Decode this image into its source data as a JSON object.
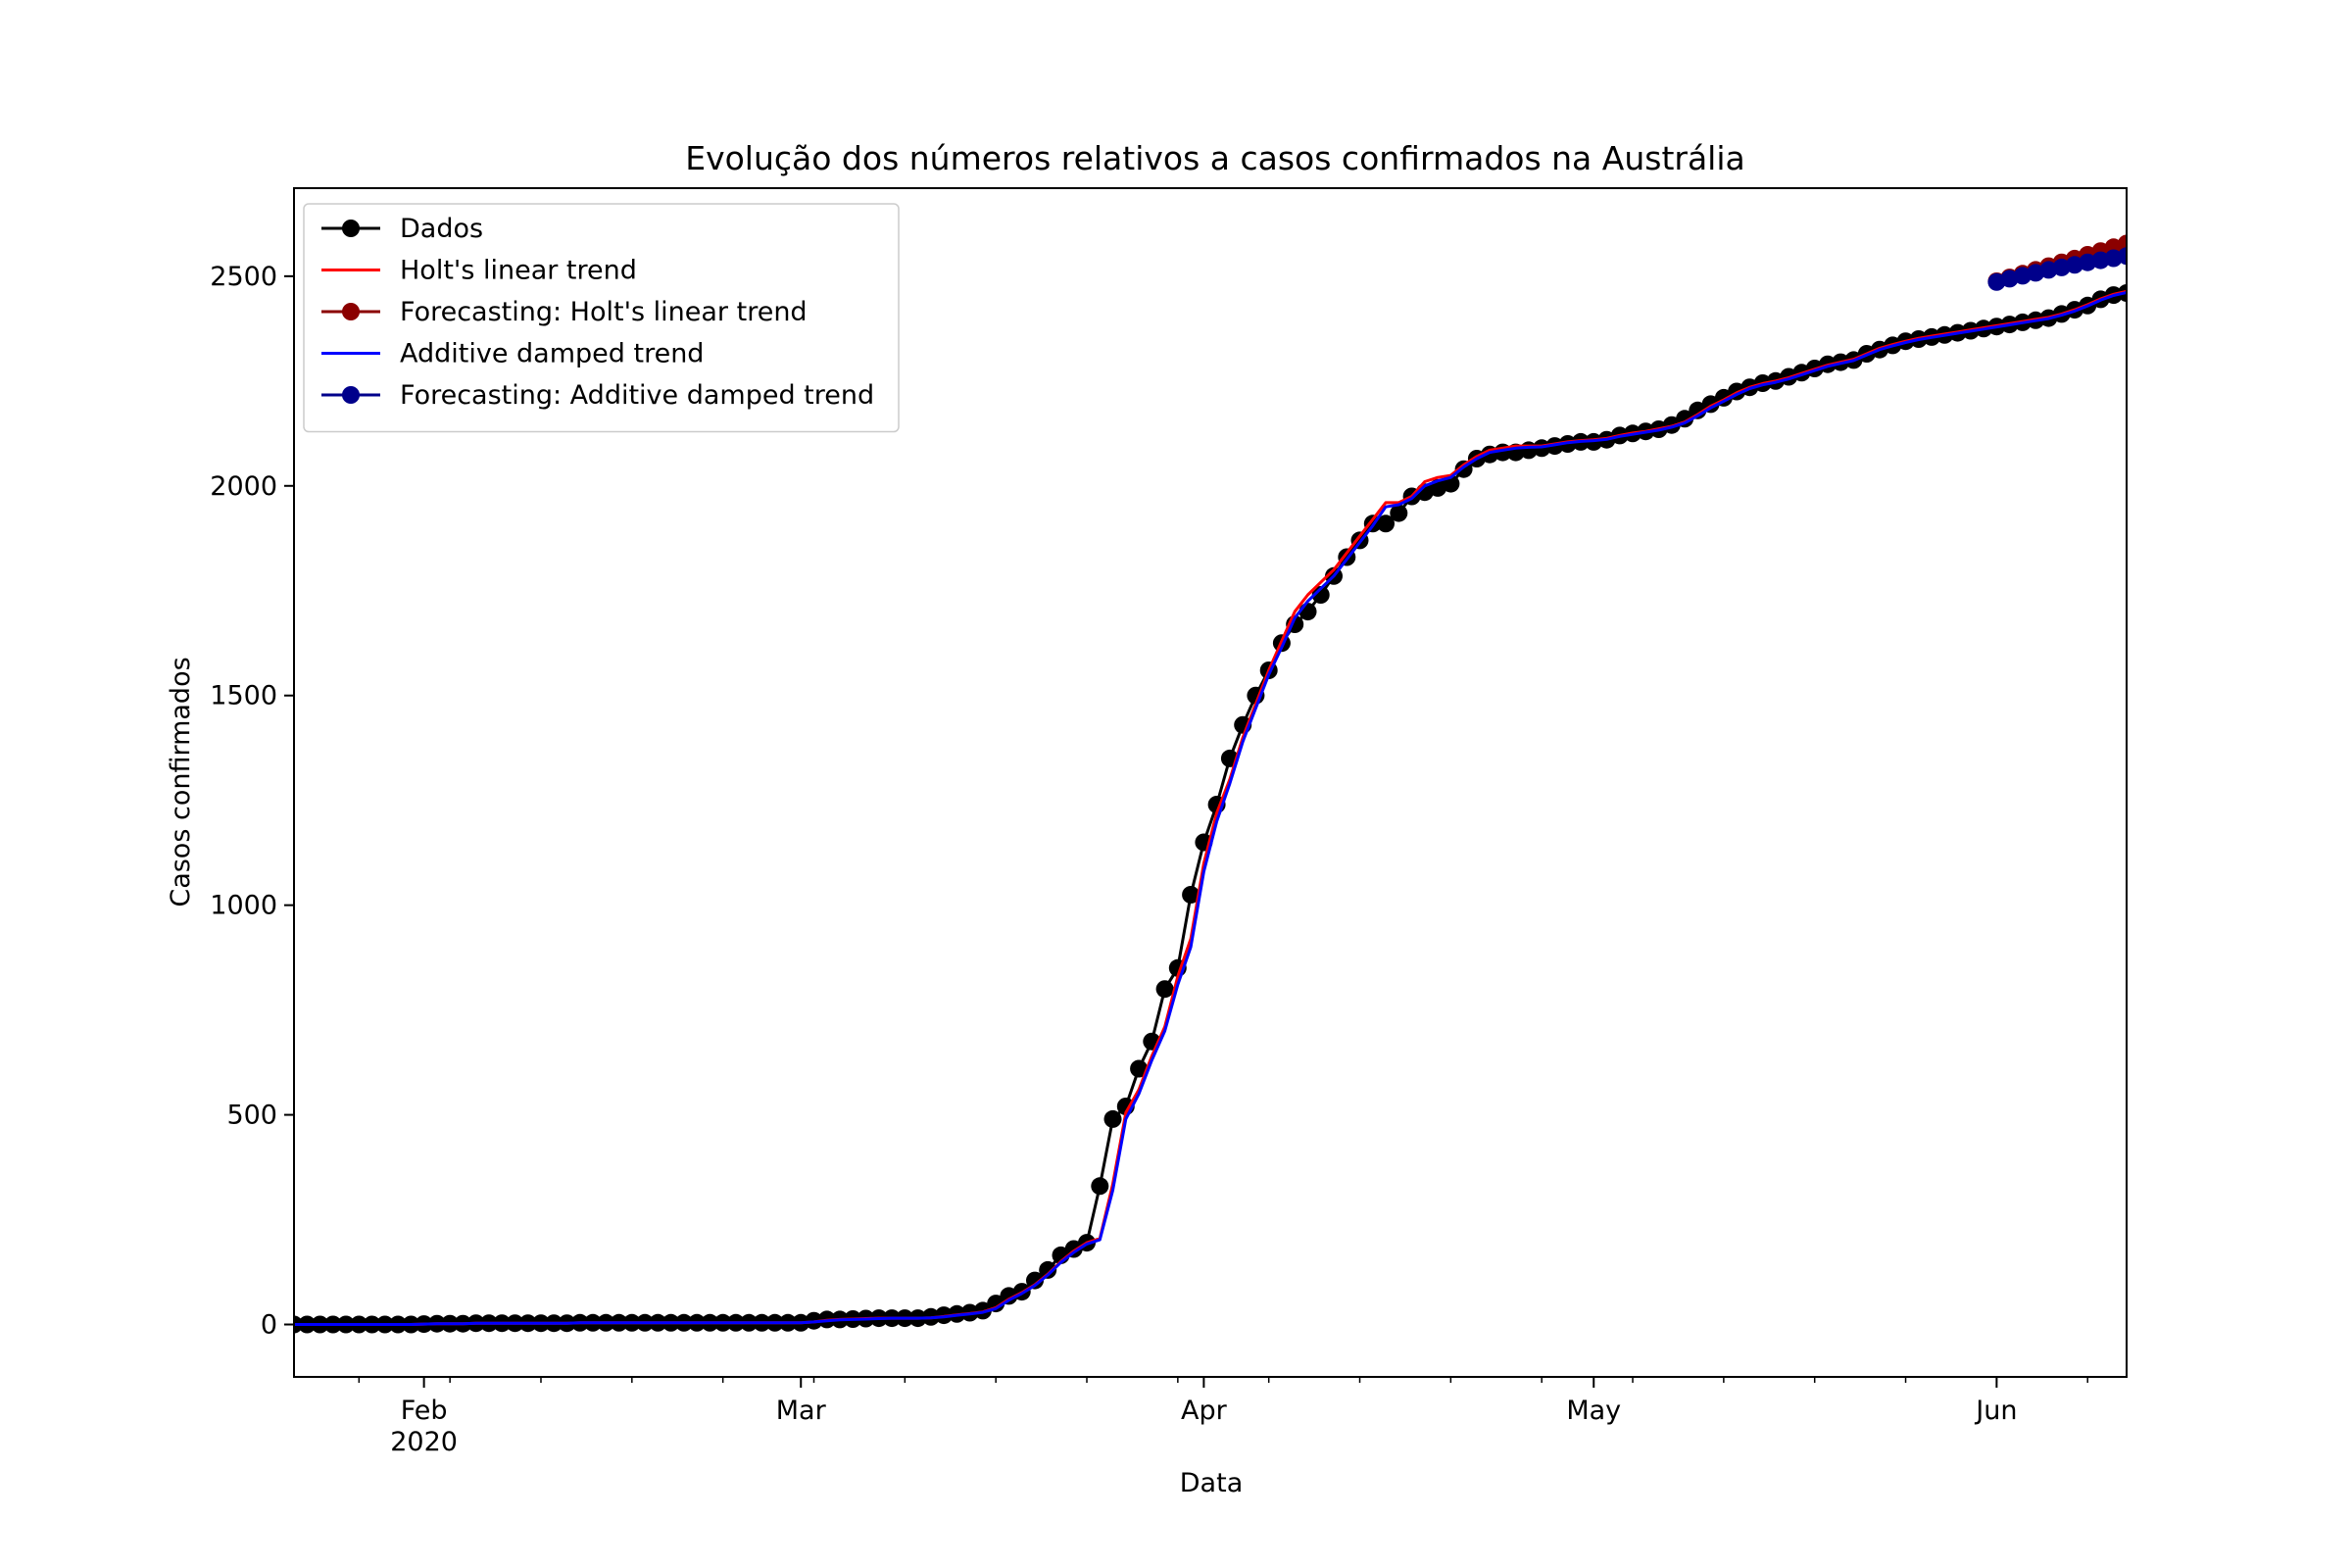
{
  "chart_data": {
    "type": "line",
    "title": "Evolução dos números relativos a casos confirmados na Austrália",
    "xlabel": "Data",
    "ylabel": "Casos confirmados",
    "x_start": "2020-01-22",
    "x_end": "2020-06-11",
    "ylim": [
      -125,
      2710
    ],
    "yticks": [
      0,
      500,
      1000,
      1500,
      2000,
      2500
    ],
    "xticks": [
      {
        "label": "Feb",
        "sublabel": "2020",
        "date": "2020-02-01"
      },
      {
        "label": "Mar",
        "sublabel": "",
        "date": "2020-03-01"
      },
      {
        "label": "Apr",
        "sublabel": "",
        "date": "2020-04-01"
      },
      {
        "label": "May",
        "sublabel": "",
        "date": "2020-05-01"
      },
      {
        "label": "Jun",
        "sublabel": "",
        "date": "2020-06-01"
      }
    ],
    "grid": false,
    "legend_position": "upper left",
    "legend": [
      {
        "label": "Dados",
        "color": "#000000",
        "marker": true
      },
      {
        "label": "Holt's linear trend",
        "color": "#ff0000",
        "marker": false
      },
      {
        "label": "Forecasting: Holt's linear trend",
        "color": "#8b0000",
        "marker": true
      },
      {
        "label": "Additive damped trend",
        "color": "#0000ff",
        "marker": false
      },
      {
        "label": "Forecasting: Additive damped trend",
        "color": "#00008b",
        "marker": true
      }
    ],
    "series": [
      {
        "name": "Dados",
        "color": "#000000",
        "marker": true,
        "dates": [
          "2020-01-22",
          "2020-05-31"
        ],
        "values": [
          0,
          0,
          0,
          0,
          0,
          0,
          0,
          0,
          0,
          0,
          1,
          2,
          2,
          2,
          3,
          3,
          3,
          3,
          3,
          3,
          3,
          3,
          4,
          4,
          4,
          4,
          4,
          4,
          4,
          4,
          4,
          4,
          4,
          4,
          4,
          4,
          4,
          4,
          4,
          4,
          9,
          12,
          12,
          13,
          14,
          15,
          15,
          15,
          15,
          18,
          22,
          25,
          28,
          33,
          50,
          68,
          78,
          105,
          130,
          165,
          180,
          195,
          330,
          490,
          520,
          610,
          675,
          800,
          850,
          1025,
          1150,
          1240,
          1350,
          1430,
          1500,
          1560,
          1625,
          1670,
          1700,
          1740,
          1785,
          1830,
          1870,
          1910,
          1910,
          1935,
          1975,
          1985,
          1995,
          2005,
          2040,
          2065,
          2075,
          2080,
          2080,
          2085,
          2090,
          2095,
          2100,
          2105,
          2105,
          2110,
          2120,
          2125,
          2130,
          2135,
          2145,
          2160,
          2180,
          2195,
          2210,
          2225,
          2235,
          2245,
          2250,
          2260,
          2270,
          2280,
          2290,
          2295,
          2300,
          2315,
          2325,
          2335,
          2345,
          2350,
          2355,
          2360,
          2365,
          2370,
          2375,
          2380,
          2385,
          2390,
          2395,
          2400,
          2410,
          2420,
          2430,
          2445,
          2455,
          2460,
          2470,
          2480
        ]
      },
      {
        "name": "Holt's linear trend",
        "color": "#ff0000",
        "marker": false,
        "dates": [
          "2020-01-22",
          "2020-05-31"
        ],
        "values": [
          0,
          0,
          0,
          0,
          0,
          0,
          0,
          0,
          0,
          0,
          1,
          2,
          2,
          2,
          3,
          3,
          3,
          3,
          3,
          3,
          3,
          3,
          4,
          4,
          4,
          4,
          4,
          4,
          4,
          4,
          4,
          4,
          4,
          4,
          4,
          4,
          4,
          4,
          4,
          4,
          6,
          10,
          12,
          13,
          14,
          15,
          15,
          15,
          15,
          16,
          19,
          23,
          26,
          30,
          40,
          60,
          76,
          95,
          120,
          150,
          175,
          195,
          205,
          335,
          505,
          560,
          640,
          710,
          830,
          920,
          1100,
          1220,
          1300,
          1400,
          1480,
          1560,
          1630,
          1700,
          1740,
          1770,
          1800,
          1840,
          1880,
          1920,
          1960,
          1960,
          1975,
          2010,
          2020,
          2025,
          2050,
          2070,
          2085,
          2090,
          2095,
          2095,
          2095,
          2100,
          2105,
          2108,
          2110,
          2113,
          2120,
          2126,
          2130,
          2136,
          2142,
          2152,
          2170,
          2190,
          2205,
          2222,
          2235,
          2244,
          2250,
          2258,
          2268,
          2278,
          2288,
          2295,
          2302,
          2315,
          2328,
          2337,
          2345,
          2352,
          2357,
          2362,
          2367,
          2372,
          2377,
          2382,
          2387,
          2392,
          2397,
          2402,
          2410,
          2420,
          2432,
          2446,
          2457,
          2464,
          2473,
          2482
        ]
      },
      {
        "name": "Additive damped trend",
        "color": "#0000ff",
        "marker": false,
        "dates": [
          "2020-01-22",
          "2020-05-31"
        ],
        "values": [
          0,
          0,
          0,
          0,
          0,
          0,
          0,
          0,
          0,
          0,
          1,
          2,
          2,
          2,
          3,
          3,
          3,
          3,
          3,
          3,
          3,
          3,
          4,
          4,
          4,
          4,
          4,
          4,
          4,
          4,
          4,
          4,
          4,
          4,
          4,
          4,
          4,
          4,
          4,
          4,
          6,
          9,
          11,
          12,
          13,
          14,
          15,
          15,
          15,
          16,
          18,
          22,
          25,
          29,
          38,
          58,
          74,
          93,
          118,
          148,
          172,
          192,
          202,
          320,
          490,
          550,
          630,
          700,
          810,
          900,
          1080,
          1200,
          1290,
          1390,
          1470,
          1550,
          1615,
          1685,
          1725,
          1755,
          1785,
          1825,
          1865,
          1905,
          1950,
          1955,
          1970,
          2000,
          2012,
          2020,
          2045,
          2065,
          2080,
          2085,
          2090,
          2092,
          2093,
          2098,
          2103,
          2106,
          2108,
          2111,
          2118,
          2123,
          2128,
          2133,
          2140,
          2150,
          2167,
          2186,
          2202,
          2218,
          2232,
          2241,
          2247,
          2255,
          2265,
          2275,
          2285,
          2292,
          2299,
          2312,
          2325,
          2334,
          2342,
          2349,
          2354,
          2359,
          2364,
          2369,
          2374,
          2379,
          2384,
          2389,
          2394,
          2399,
          2407,
          2417,
          2429,
          2443,
          2454,
          2461,
          2470,
          2479
        ]
      },
      {
        "name": "Forecasting: Holt's linear trend",
        "color": "#8b0000",
        "marker": true,
        "dates": [
          "2020-06-01",
          "2020-06-11"
        ],
        "values": [
          2488,
          2497,
          2506,
          2515,
          2524,
          2533,
          2542,
          2551,
          2560,
          2569,
          2578
        ]
      },
      {
        "name": "Forecasting: Additive damped trend",
        "color": "#00008b",
        "marker": true,
        "dates": [
          "2020-06-01",
          "2020-06-11"
        ],
        "values": [
          2486,
          2494,
          2501,
          2508,
          2515,
          2521,
          2527,
          2533,
          2538,
          2543,
          2548
        ]
      }
    ]
  }
}
